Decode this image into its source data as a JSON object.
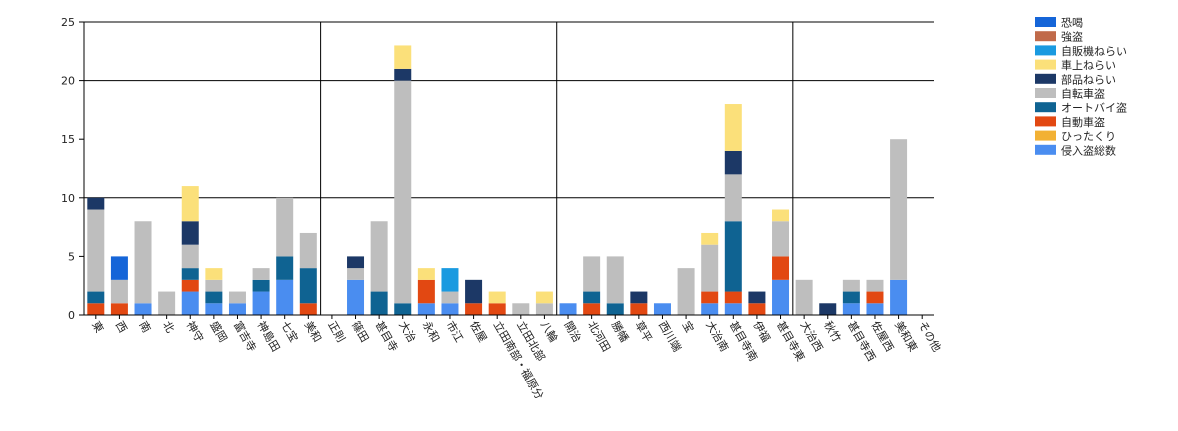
{
  "chart_data": {
    "type": "bar",
    "stacked": true,
    "ylim": [
      0,
      25
    ],
    "yticks": [
      0,
      5,
      10,
      15,
      20,
      25
    ],
    "grid": "horizontal lines at 10, 20, 25; vertical divider lines every 10 categories",
    "legend_position": "top-right",
    "categories": [
      "東",
      "西",
      "南",
      "北",
      "神守",
      "盛岡",
      "富吉寺",
      "神島田",
      "七宝",
      "美和",
      "正則",
      "篠田",
      "甚目寺",
      "大治",
      "永和",
      "市江",
      "佐屋",
      "立田南部・福原分",
      "立田北部",
      "八輪",
      "開治",
      "北河田",
      "勝幡",
      "草平",
      "西川端",
      "宝",
      "大治南",
      "甚目寺南",
      "伊福",
      "甚目寺東",
      "大治西",
      "秋竹",
      "甚目寺西",
      "佐屋西",
      "美和東",
      "その他"
    ],
    "series": [
      {
        "name": "恐喝",
        "color": "#1565d8",
        "values": [
          0,
          2,
          0,
          0,
          0,
          0,
          0,
          0,
          0,
          0,
          0,
          0,
          0,
          0,
          0,
          0,
          0,
          0,
          0,
          0,
          0,
          0,
          0,
          0,
          0,
          0,
          0,
          0,
          0,
          0,
          0,
          0,
          0,
          0,
          0,
          0
        ]
      },
      {
        "name": "強盗",
        "color": "#c06a4a",
        "values": [
          0,
          0,
          0,
          0,
          0,
          0,
          0,
          0,
          0,
          0,
          0,
          0,
          0,
          0,
          0,
          0,
          0,
          0,
          0,
          0,
          0,
          0,
          0,
          0,
          0,
          0,
          0,
          0,
          0,
          0,
          0,
          0,
          0,
          0,
          0,
          0
        ]
      },
      {
        "name": "自販機ねらい",
        "color": "#1a9ae0",
        "values": [
          0,
          0,
          0,
          0,
          0,
          0,
          0,
          0,
          0,
          0,
          0,
          0,
          0,
          0,
          0,
          2,
          0,
          0,
          0,
          0,
          0,
          0,
          0,
          0,
          0,
          0,
          0,
          0,
          0,
          0,
          0,
          0,
          0,
          0,
          0,
          0
        ]
      },
      {
        "name": "車上ねらい",
        "color": "#fbe07a",
        "values": [
          0,
          0,
          0,
          0,
          3,
          1,
          0,
          0,
          0,
          0,
          0,
          0,
          0,
          2,
          1,
          0,
          0,
          1,
          0,
          1,
          0,
          0,
          0,
          0,
          0,
          0,
          1,
          4,
          0,
          1,
          0,
          0,
          0,
          0,
          0,
          0
        ]
      },
      {
        "name": "部品ねらい",
        "color": "#1c3866",
        "values": [
          1,
          0,
          0,
          0,
          2,
          0,
          0,
          0,
          0,
          0,
          0,
          1,
          0,
          1,
          0,
          0,
          2,
          0,
          0,
          0,
          0,
          0,
          0,
          1,
          0,
          0,
          0,
          2,
          1,
          0,
          0,
          1,
          0,
          0,
          0,
          0
        ]
      },
      {
        "name": "自転車盗",
        "color": "#bebebe",
        "values": [
          7,
          2,
          7,
          2,
          2,
          1,
          1,
          1,
          5,
          3,
          0,
          1,
          6,
          19,
          0,
          1,
          0,
          0,
          1,
          1,
          0,
          3,
          4,
          0,
          0,
          4,
          4,
          4,
          0,
          3,
          3,
          0,
          1,
          1,
          12,
          0
        ]
      },
      {
        "name": "オートバイ盗",
        "color": "#0f6392",
        "values": [
          1,
          0,
          0,
          0,
          1,
          1,
          0,
          1,
          2,
          3,
          0,
          0,
          2,
          1,
          0,
          0,
          0,
          0,
          0,
          0,
          0,
          1,
          1,
          0,
          0,
          0,
          0,
          6,
          0,
          0,
          0,
          0,
          1,
          0,
          0,
          0
        ]
      },
      {
        "name": "自動車盗",
        "color": "#e24812",
        "values": [
          1,
          1,
          0,
          0,
          1,
          0,
          0,
          0,
          0,
          1,
          0,
          0,
          0,
          0,
          2,
          0,
          1,
          1,
          0,
          0,
          0,
          1,
          0,
          1,
          0,
          0,
          1,
          1,
          1,
          2,
          0,
          0,
          0,
          1,
          0,
          0
        ]
      },
      {
        "name": "ひったくり",
        "color": "#f2b134",
        "values": [
          0,
          0,
          0,
          0,
          0,
          0,
          0,
          0,
          0,
          0,
          0,
          0,
          0,
          0,
          0,
          0,
          0,
          0,
          0,
          0,
          0,
          0,
          0,
          0,
          0,
          0,
          0,
          0,
          0,
          0,
          0,
          0,
          0,
          0,
          0,
          0
        ]
      },
      {
        "name": "侵入盗総数",
        "color": "#4a8df0",
        "values": [
          0,
          0,
          1,
          0,
          2,
          1,
          1,
          2,
          3,
          0,
          0,
          3,
          0,
          0,
          1,
          1,
          0,
          0,
          0,
          0,
          1,
          0,
          0,
          0,
          1,
          0,
          1,
          1,
          0,
          3,
          0,
          0,
          1,
          1,
          3,
          0
        ]
      }
    ]
  }
}
